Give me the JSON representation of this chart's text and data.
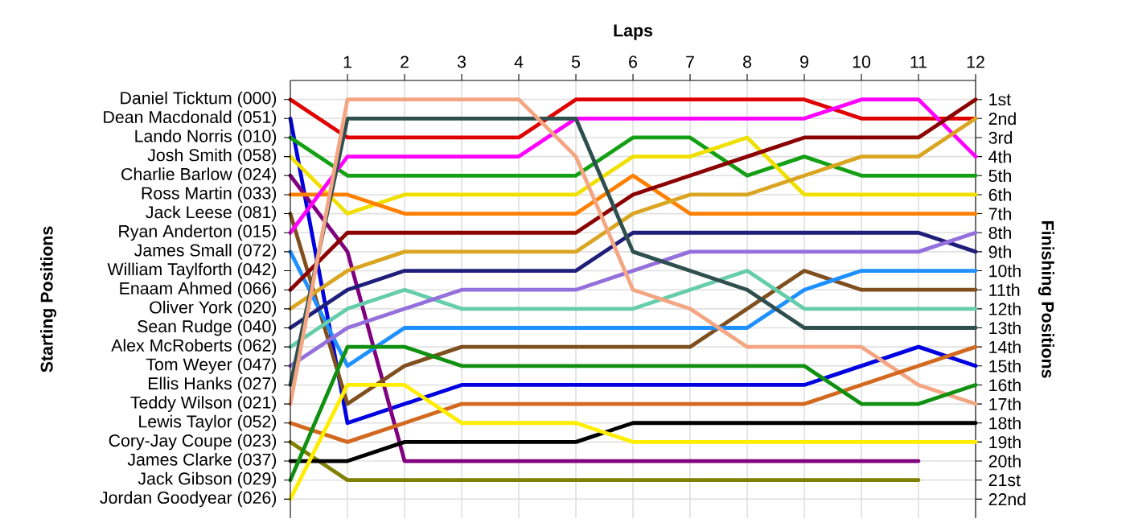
{
  "chart_data": {
    "type": "line",
    "xlabel": "Laps",
    "ylabel": "Finishing Positions",
    "grid": true,
    "x": [
      0,
      1,
      2,
      3,
      4,
      5,
      6,
      7,
      8,
      9,
      10,
      11,
      12
    ],
    "xlim": [
      0,
      12
    ],
    "xticks": [
      1,
      2,
      3,
      4,
      5,
      6,
      7,
      8,
      9,
      10,
      11,
      12
    ],
    "ylim": [
      23,
      0
    ],
    "yticks": [
      {
        "value": 1,
        "label": "1st"
      },
      {
        "value": 2,
        "label": "2nd"
      },
      {
        "value": 3,
        "label": "3rd"
      },
      {
        "value": 4,
        "label": "4th"
      },
      {
        "value": 5,
        "label": "5th"
      },
      {
        "value": 6,
        "label": "6th"
      },
      {
        "value": 7,
        "label": "7th"
      },
      {
        "value": 8,
        "label": "8th"
      },
      {
        "value": 9,
        "label": "9th"
      },
      {
        "value": 10,
        "label": "10th"
      },
      {
        "value": 11,
        "label": "11th"
      },
      {
        "value": 12,
        "label": "12th"
      },
      {
        "value": 13,
        "label": "13th"
      },
      {
        "value": 14,
        "label": "14th"
      },
      {
        "value": 15,
        "label": "15th"
      },
      {
        "value": 16,
        "label": "16th"
      },
      {
        "value": 17,
        "label": "17th"
      },
      {
        "value": 18,
        "label": "18th"
      },
      {
        "value": 19,
        "label": "19th"
      },
      {
        "value": 20,
        "label": "20th"
      },
      {
        "value": 21,
        "label": "21st"
      },
      {
        "value": 22,
        "label": "22nd"
      }
    ],
    "annotations": [
      "Daniel Ticktum (000)",
      "Dean Macdonald (051)",
      "Lando Norris (010)",
      "Josh Smith (058)",
      "Charlie Barlow (024)",
      "Ross Martin (033)",
      "Jack Leese (081)",
      "Ryan Anderton (015)",
      "James Small (072)",
      "William Taylforth (042)",
      "Enaam Ahmed (066)",
      "Oliver York (020)",
      "Sean Rudge (040)",
      "Alex McRoberts (062)",
      "Tom Weyer (047)",
      "Ellis Hanks (027)",
      "Teddy Wilson (021)",
      "Lewis Taylor (052)",
      "Cory-Jay Coupe (023)",
      "James Clarke (037)",
      "Jack Gibson (029)",
      "Jordan Goodyear (026)",
      "Starting Positions"
    ],
    "series": [
      {
        "color": "#e00000",
        "values": [
          1,
          3,
          3,
          3,
          3,
          1,
          1,
          1,
          1,
          1,
          2,
          2,
          2
        ]
      },
      {
        "color": "#0000e0",
        "values": [
          2,
          18,
          17,
          16,
          16,
          16,
          16,
          16,
          16,
          16,
          15,
          14,
          15
        ]
      },
      {
        "color": "#14a014",
        "values": [
          3,
          5,
          5,
          5,
          5,
          5,
          3,
          3,
          5,
          4,
          5,
          5,
          5
        ]
      },
      {
        "color": "#f0e000",
        "values": [
          4,
          7,
          6,
          6,
          6,
          6,
          4,
          4,
          3,
          6,
          6,
          6,
          6
        ]
      },
      {
        "color": "#800080",
        "values": [
          5,
          9,
          20,
          20,
          20,
          20,
          20,
          20,
          20,
          20,
          20,
          20,
          null
        ]
      },
      {
        "color": "#ff8000",
        "values": [
          6,
          6,
          7,
          7,
          7,
          7,
          5,
          7,
          7,
          7,
          7,
          7,
          7
        ]
      },
      {
        "color": "#7f4f1f",
        "values": [
          7,
          17,
          15,
          14,
          14,
          14,
          14,
          14,
          12,
          10,
          11,
          11,
          11
        ]
      },
      {
        "color": "#ff00ff",
        "values": [
          8,
          4,
          4,
          4,
          4,
          2,
          2,
          2,
          2,
          2,
          1,
          1,
          4
        ]
      },
      {
        "color": "#1e90ff",
        "values": [
          9,
          15,
          13,
          13,
          13,
          13,
          13,
          13,
          13,
          11,
          10,
          10,
          10
        ]
      },
      {
        "color": "#8b0000",
        "values": [
          11,
          8,
          8,
          8,
          8,
          8,
          6,
          5,
          4,
          3,
          3,
          3,
          1
        ]
      },
      {
        "color": "#daa520",
        "values": [
          12,
          10,
          9,
          9,
          9,
          9,
          7,
          6,
          6,
          5,
          4,
          4,
          2
        ]
      },
      {
        "color": "#1f1f7a",
        "values": [
          13,
          11,
          10,
          10,
          10,
          10,
          8,
          8,
          8,
          8,
          8,
          8,
          9
        ]
      },
      {
        "color": "#66cdaa",
        "values": [
          14,
          12,
          11,
          12,
          12,
          12,
          12,
          11,
          10,
          12,
          12,
          12,
          12
        ]
      },
      {
        "color": "#9370db",
        "values": [
          15,
          13,
          12,
          11,
          11,
          11,
          10,
          9,
          9,
          9,
          9,
          9,
          8
        ]
      },
      {
        "color": "#2f4f4f",
        "values": [
          16,
          2,
          2,
          2,
          2,
          2,
          9,
          10,
          11,
          13,
          13,
          13,
          13
        ]
      },
      {
        "color": "#f4a582",
        "values": [
          17,
          1,
          1,
          1,
          1,
          4,
          11,
          12,
          14,
          14,
          14,
          16,
          17
        ]
      },
      {
        "color": "#d2691e",
        "values": [
          18,
          19,
          18,
          17,
          17,
          17,
          17,
          17,
          17,
          17,
          16,
          15,
          14
        ]
      },
      {
        "color": "#808000",
        "values": [
          19,
          21,
          21,
          21,
          21,
          21,
          21,
          21,
          21,
          21,
          21,
          21,
          null
        ]
      },
      {
        "color": "#000000",
        "values": [
          20,
          20,
          19,
          19,
          19,
          19,
          18,
          18,
          18,
          18,
          18,
          18,
          18
        ]
      },
      {
        "color": "#109010",
        "values": [
          21,
          14,
          14,
          15,
          15,
          15,
          15,
          15,
          15,
          15,
          17,
          17,
          16
        ]
      },
      {
        "color": "#ffee00",
        "values": [
          22,
          16,
          16,
          18,
          18,
          18,
          19,
          19,
          19,
          19,
          19,
          19,
          19
        ]
      }
    ]
  }
}
